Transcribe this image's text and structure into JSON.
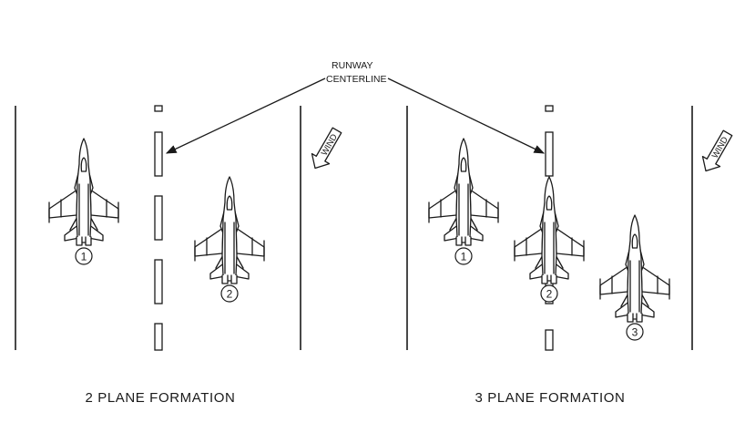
{
  "callout": {
    "line1": "RUNWAY",
    "line2": "CENTERLINE"
  },
  "panels": [
    {
      "caption": "2 PLANE FORMATION",
      "wind_label": "WIND",
      "aircraft": [
        {
          "number": "1"
        },
        {
          "number": "2"
        }
      ]
    },
    {
      "caption": "3 PLANE FORMATION",
      "wind_label": "WIND",
      "aircraft": [
        {
          "number": "1"
        },
        {
          "number": "2"
        },
        {
          "number": "3"
        }
      ]
    }
  ],
  "colors": {
    "ink": "#1a1a1a",
    "background": "#ffffff"
  }
}
